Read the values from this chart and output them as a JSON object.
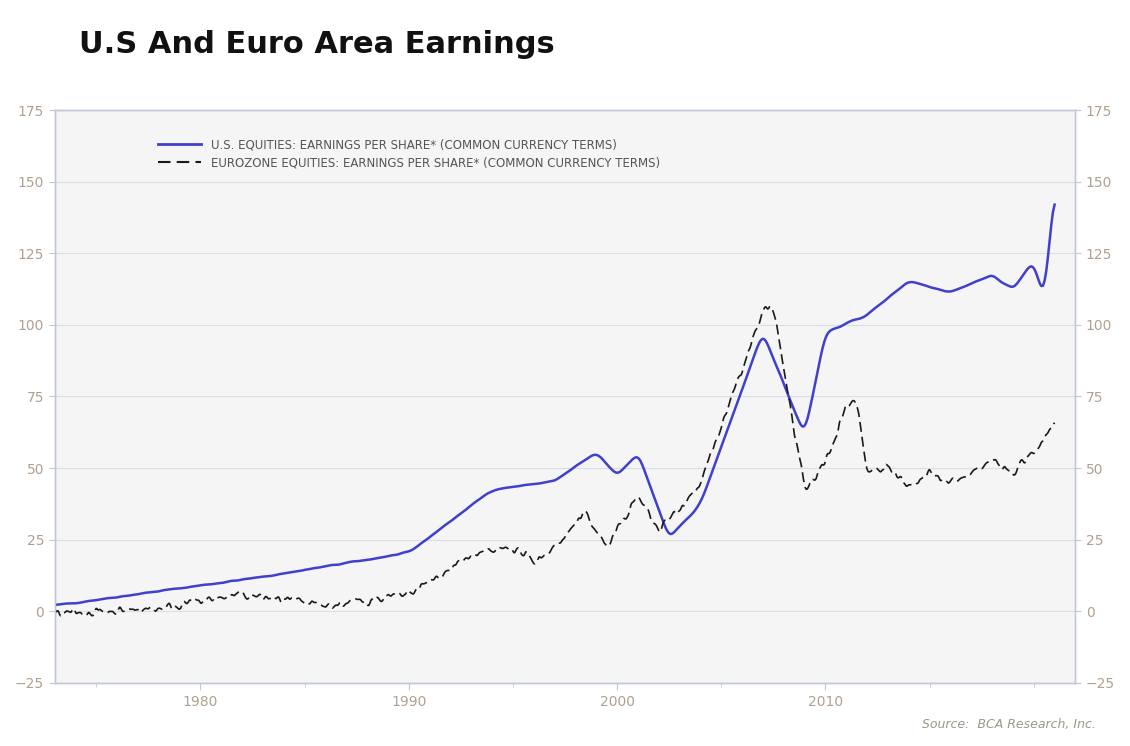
{
  "title": "U.S And Euro Area Earnings",
  "title_fontsize": 22,
  "title_fontweight": "bold",
  "us_label": "U.S. EQUITIES: EARNINGS PER SHARE* (COMMON CURRENCY TERMS)",
  "euro_label": "EUROZONE EQUITIES: EARNINGS PER SHARE* (COMMON CURRENCY TERMS)",
  "us_color": "#4040cc",
  "euro_color": "#1a1a1a",
  "background_color": "#ffffff",
  "plot_bg_color": "#f5f5f5",
  "ylim": [
    -25,
    175
  ],
  "yticks": [
    -25,
    0,
    25,
    50,
    75,
    100,
    125,
    150,
    175
  ],
  "xlim_start": 1973,
  "xlim_end": 2022,
  "xticks": [
    1980,
    1990,
    2000,
    2010
  ],
  "source_text": "Source:  BCA Research, Inc.",
  "tick_label_color": "#b0a090",
  "grid_color": "#d8dde8",
  "spine_color": "#c0c8d8",
  "legend_fontsize": 9,
  "axis_label_fontsize": 9
}
